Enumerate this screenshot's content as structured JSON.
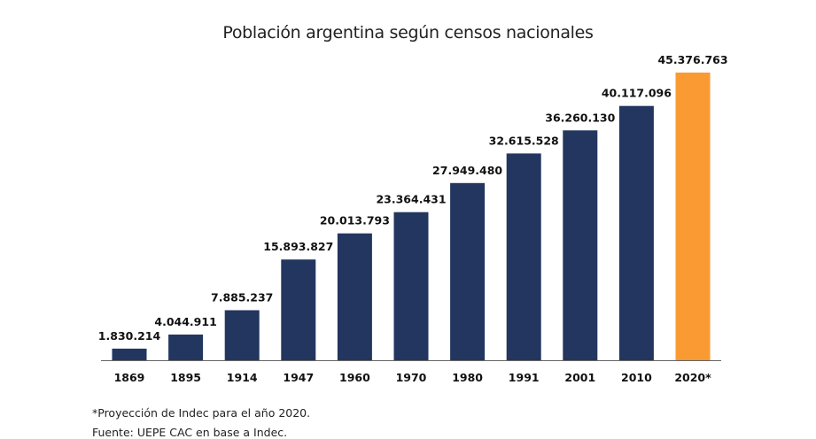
{
  "chart_data": {
    "type": "bar",
    "title": "Población argentina según censos nacionales",
    "categories": [
      "1869",
      "1895",
      "1914",
      "1947",
      "1960",
      "1970",
      "1980",
      "1991",
      "2001",
      "2010",
      "2020*"
    ],
    "values": [
      1830214,
      4044911,
      7885237,
      15893827,
      20013793,
      23364431,
      27949480,
      32615528,
      36260130,
      40117096,
      45376763
    ],
    "value_labels": [
      "1.830.214",
      "4.044.911",
      "7.885.237",
      "15.893.827",
      "20.013.793",
      "23.364.431",
      "27.949.480",
      "32.615.528",
      "36.260.130",
      "40.117.096",
      "45.376.763"
    ],
    "xlabel": "",
    "ylabel": "",
    "ylim": [
      0,
      45376763
    ],
    "grid": false,
    "colors": {
      "bar": "#22365f",
      "highlight": "#fa9a32",
      "axis": "#666666"
    },
    "highlight_index": 10
  },
  "notes": {
    "projection": "*Proyección de Indec para el año 2020.",
    "source": "Fuente: UEPE CAC en base a Indec."
  }
}
